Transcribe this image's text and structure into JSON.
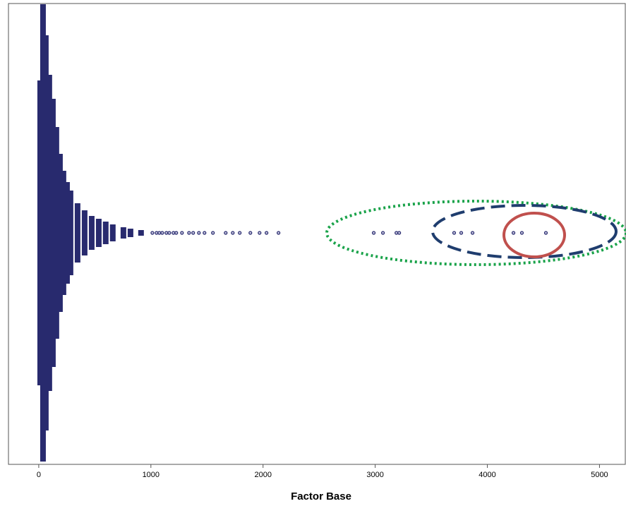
{
  "chart_data": {
    "type": "dotplot",
    "xlabel": "Factor Base",
    "color": "#282a6e",
    "xlim": [
      -270,
      5230
    ],
    "xticks": [
      0,
      1000,
      2000,
      3000,
      4000,
      5000
    ],
    "x": [
      13,
      38,
      63,
      94,
      126,
      157,
      189,
      220,
      252,
      283,
      346,
      409,
      472,
      535,
      597,
      660,
      755,
      818,
      912,
      1013,
      1050,
      1075,
      1101,
      1138,
      1164,
      1201,
      1226,
      1277,
      1340,
      1377,
      1428,
      1478,
      1553,
      1667,
      1730,
      1792,
      1887,
      1969,
      2031,
      2138,
      2987,
      3069,
      3189,
      3214,
      3704,
      3767,
      3868,
      4233,
      4308,
      4522
    ],
    "counts": [
      108,
      162,
      140,
      112,
      95,
      75,
      56,
      44,
      36,
      30,
      21,
      16,
      12,
      10,
      8,
      6,
      4,
      3,
      2,
      1,
      1,
      1,
      1,
      1,
      1,
      1,
      1,
      1,
      1,
      1,
      1,
      1,
      1,
      1,
      1,
      1,
      1,
      1,
      1,
      1,
      1,
      1,
      1,
      1,
      1,
      1,
      1,
      1,
      1,
      1
    ]
  }
}
